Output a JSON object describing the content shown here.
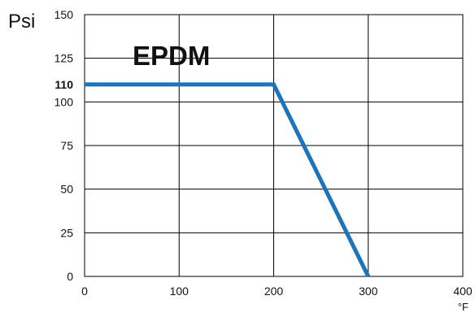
{
  "chart_data": {
    "type": "line",
    "title": "",
    "xlabel": "°F",
    "ylabel": "Psi",
    "annotation": "EPDM",
    "x_ticks": [
      0,
      100,
      200,
      300,
      400
    ],
    "y_ticks": [
      0,
      25,
      50,
      75,
      100,
      125,
      150
    ],
    "highlighted_y_tick": 110,
    "xlim": [
      0,
      400
    ],
    "ylim": [
      0,
      150
    ],
    "grid": true,
    "series": [
      {
        "x": [
          0,
          200,
          300
        ],
        "y": [
          110,
          110,
          0
        ],
        "color": "#1c75bc"
      }
    ]
  }
}
